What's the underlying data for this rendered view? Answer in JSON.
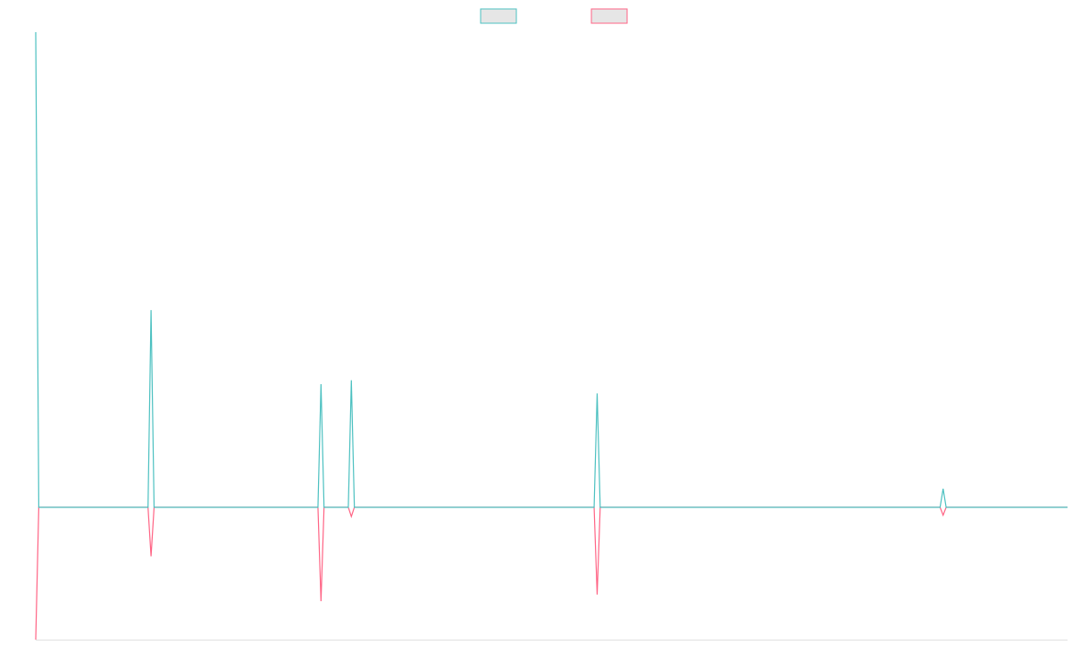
{
  "chart_data": {
    "type": "line",
    "x": [
      0,
      1,
      37,
      38,
      39,
      93,
      94,
      95,
      103,
      104,
      105,
      184,
      185,
      186,
      298,
      299,
      300,
      340
    ],
    "series": [
      {
        "color": "#4bc0c0",
        "values": [
          3.59,
          0,
          0,
          1.49,
          0,
          0,
          0.93,
          0,
          0,
          0.96,
          0,
          0,
          0.86,
          0,
          0,
          0.14,
          0,
          0
        ]
      },
      {
        "color": "#ff6384",
        "values": [
          -1,
          0,
          0,
          -0.37,
          0,
          0,
          -0.71,
          0,
          0,
          -0.07,
          0,
          0,
          -0.66,
          0,
          0,
          -0.06,
          0,
          0
        ]
      }
    ],
    "xlim": [
      0,
      340
    ],
    "ylim": [
      -1,
      3.59
    ],
    "legend": "top",
    "grid": false
  }
}
